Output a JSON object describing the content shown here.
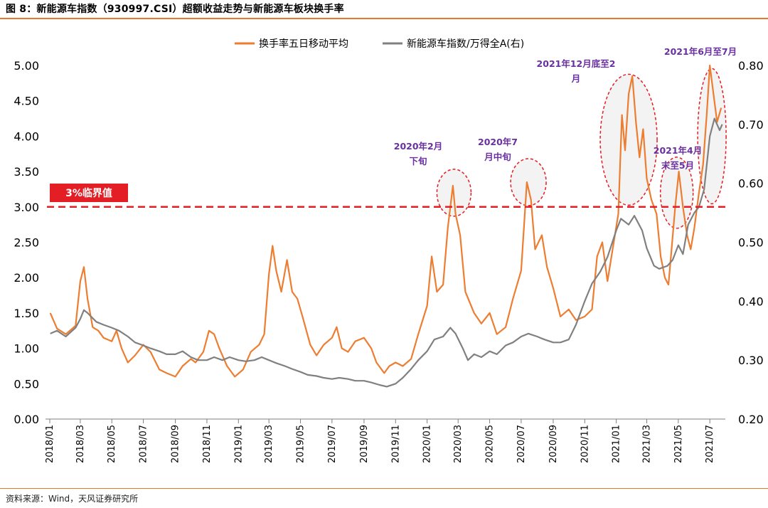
{
  "figure": {
    "title": "图 8：新能源车指数（930997.CSI）超额收益走势与新能源车板块换手率",
    "source": "资料来源：Wind，天风证券研究所"
  },
  "chart_data": {
    "type": "line",
    "title": "图 8：新能源车指数（930997.CSI）超额收益走势与新能源车板块换手率",
    "x_ticks": [
      "2018/01",
      "2018/03",
      "2018/05",
      "2018/07",
      "2018/09",
      "2018/11",
      "2019/01",
      "2019/03",
      "2019/05",
      "2019/07",
      "2019/09",
      "2019/11",
      "2020/01",
      "2020/03",
      "2020/05",
      "2020/07",
      "2020/09",
      "2020/11",
      "2021/01",
      "2021/03",
      "2021/05",
      "2021/07"
    ],
    "y_left": {
      "lim": [
        0.0,
        5.0
      ],
      "ticks": [
        "0.00",
        "0.50",
        "1.00",
        "1.50",
        "2.00",
        "2.50",
        "3.00",
        "3.50",
        "4.00",
        "4.50",
        "5.00"
      ]
    },
    "y_right": {
      "lim": [
        0.2,
        0.8
      ],
      "ticks": [
        "0.20",
        "0.30",
        "0.40",
        "0.50",
        "0.60",
        "0.70",
        "0.80"
      ]
    },
    "legend_position": "top-center",
    "grid": false,
    "series": [
      {
        "name": "换手率五日移动平均",
        "color": "#ed7d31",
        "axis": "left",
        "values": [
          [
            "2018/01/02",
            1.5
          ],
          [
            "2018/01/15",
            1.28
          ],
          [
            "2018/02/01",
            1.2
          ],
          [
            "2018/02/20",
            1.32
          ],
          [
            "2018/03/01",
            1.95
          ],
          [
            "2018/03/08",
            2.15
          ],
          [
            "2018/03/15",
            1.7
          ],
          [
            "2018/03/25",
            1.3
          ],
          [
            "2018/04/05",
            1.25
          ],
          [
            "2018/04/15",
            1.15
          ],
          [
            "2018/05/01",
            1.1
          ],
          [
            "2018/05/10",
            1.25
          ],
          [
            "2018/05/20",
            1.0
          ],
          [
            "2018/06/01",
            0.8
          ],
          [
            "2018/06/15",
            0.9
          ],
          [
            "2018/07/01",
            1.05
          ],
          [
            "2018/07/15",
            0.95
          ],
          [
            "2018/08/01",
            0.7
          ],
          [
            "2018/08/15",
            0.65
          ],
          [
            "2018/09/01",
            0.6
          ],
          [
            "2018/09/15",
            0.75
          ],
          [
            "2018/10/01",
            0.85
          ],
          [
            "2018/10/10",
            0.8
          ],
          [
            "2018/10/25",
            0.95
          ],
          [
            "2018/11/05",
            1.25
          ],
          [
            "2018/11/15",
            1.2
          ],
          [
            "2018/11/25",
            1.0
          ],
          [
            "2018/12/10",
            0.75
          ],
          [
            "2018/12/25",
            0.6
          ],
          [
            "2019/01/10",
            0.7
          ],
          [
            "2019/01/25",
            0.95
          ],
          [
            "2019/02/10",
            1.05
          ],
          [
            "2019/02/20",
            1.2
          ],
          [
            "2019/03/01",
            2.05
          ],
          [
            "2019/03/08",
            2.45
          ],
          [
            "2019/03/15",
            2.1
          ],
          [
            "2019/03/25",
            1.8
          ],
          [
            "2019/04/05",
            2.25
          ],
          [
            "2019/04/15",
            1.8
          ],
          [
            "2019/04/25",
            1.7
          ],
          [
            "2019/05/05",
            1.45
          ],
          [
            "2019/05/20",
            1.05
          ],
          [
            "2019/06/01",
            0.9
          ],
          [
            "2019/06/15",
            1.05
          ],
          [
            "2019/07/01",
            1.15
          ],
          [
            "2019/07/10",
            1.3
          ],
          [
            "2019/07/20",
            1.0
          ],
          [
            "2019/08/01",
            0.95
          ],
          [
            "2019/08/15",
            1.1
          ],
          [
            "2019/09/01",
            1.15
          ],
          [
            "2019/09/15",
            1.0
          ],
          [
            "2019/09/25",
            0.8
          ],
          [
            "2019/10/10",
            0.65
          ],
          [
            "2019/10/20",
            0.75
          ],
          [
            "2019/11/01",
            0.8
          ],
          [
            "2019/11/15",
            0.75
          ],
          [
            "2019/12/01",
            0.85
          ],
          [
            "2019/12/15",
            1.2
          ],
          [
            "2020/01/01",
            1.6
          ],
          [
            "2020/01/10",
            2.3
          ],
          [
            "2020/01/20",
            1.8
          ],
          [
            "2020/02/01",
            1.9
          ],
          [
            "2020/02/10",
            2.7
          ],
          [
            "2020/02/20",
            3.3
          ],
          [
            "2020/02/25",
            2.9
          ],
          [
            "2020/03/05",
            2.6
          ],
          [
            "2020/03/15",
            1.8
          ],
          [
            "2020/04/01",
            1.5
          ],
          [
            "2020/04/15",
            1.35
          ],
          [
            "2020/05/01",
            1.5
          ],
          [
            "2020/05/15",
            1.2
          ],
          [
            "2020/06/01",
            1.3
          ],
          [
            "2020/06/15",
            1.7
          ],
          [
            "2020/07/01",
            2.1
          ],
          [
            "2020/07/08",
            2.9
          ],
          [
            "2020/07/12",
            3.35
          ],
          [
            "2020/07/20",
            3.1
          ],
          [
            "2020/07/28",
            2.4
          ],
          [
            "2020/08/10",
            2.6
          ],
          [
            "2020/08/20",
            2.15
          ],
          [
            "2020/09/01",
            1.85
          ],
          [
            "2020/09/15",
            1.45
          ],
          [
            "2020/10/01",
            1.55
          ],
          [
            "2020/10/15",
            1.4
          ],
          [
            "2020/11/01",
            1.45
          ],
          [
            "2020/11/15",
            1.55
          ],
          [
            "2020/11/25",
            2.3
          ],
          [
            "2020/12/05",
            2.5
          ],
          [
            "2020/12/15",
            1.95
          ],
          [
            "2020/12/25",
            2.4
          ],
          [
            "2021/01/05",
            2.9
          ],
          [
            "2021/01/12",
            4.3
          ],
          [
            "2021/01/18",
            3.8
          ],
          [
            "2021/01/25",
            4.6
          ],
          [
            "2021/02/01",
            4.85
          ],
          [
            "2021/02/08",
            4.2
          ],
          [
            "2021/02/15",
            3.7
          ],
          [
            "2021/02/22",
            4.1
          ],
          [
            "2021/03/01",
            3.4
          ],
          [
            "2021/03/10",
            3.1
          ],
          [
            "2021/03/20",
            2.9
          ],
          [
            "2021/03/28",
            2.3
          ],
          [
            "2021/04/05",
            2.0
          ],
          [
            "2021/04/12",
            1.9
          ],
          [
            "2021/04/18",
            2.4
          ],
          [
            "2021/04/25",
            3.0
          ],
          [
            "2021/05/02",
            3.5
          ],
          [
            "2021/05/10",
            3.0
          ],
          [
            "2021/05/18",
            2.6
          ],
          [
            "2021/05/25",
            2.4
          ],
          [
            "2021/06/01",
            2.7
          ],
          [
            "2021/06/10",
            3.2
          ],
          [
            "2021/06/18",
            3.6
          ],
          [
            "2021/06/25",
            4.3
          ],
          [
            "2021/07/01",
            5.0
          ],
          [
            "2021/07/08",
            4.6
          ],
          [
            "2021/07/15",
            4.2
          ],
          [
            "2021/07/23",
            4.4
          ]
        ]
      },
      {
        "name": "新能源车指数/万得全A(右)",
        "color": "#808080",
        "axis": "right",
        "values": [
          [
            "2018/01/02",
            0.345
          ],
          [
            "2018/01/15",
            0.35
          ],
          [
            "2018/02/01",
            0.34
          ],
          [
            "2018/02/20",
            0.355
          ],
          [
            "2018/03/01",
            0.37
          ],
          [
            "2018/03/08",
            0.385
          ],
          [
            "2018/03/15",
            0.38
          ],
          [
            "2018/04/01",
            0.365
          ],
          [
            "2018/04/15",
            0.36
          ],
          [
            "2018/05/01",
            0.355
          ],
          [
            "2018/05/15",
            0.35
          ],
          [
            "2018/06/01",
            0.34
          ],
          [
            "2018/06/15",
            0.33
          ],
          [
            "2018/07/01",
            0.325
          ],
          [
            "2018/07/15",
            0.32
          ],
          [
            "2018/08/01",
            0.315
          ],
          [
            "2018/08/15",
            0.31
          ],
          [
            "2018/09/01",
            0.31
          ],
          [
            "2018/09/15",
            0.315
          ],
          [
            "2018/10/01",
            0.305
          ],
          [
            "2018/10/15",
            0.3
          ],
          [
            "2018/11/01",
            0.3
          ],
          [
            "2018/11/15",
            0.305
          ],
          [
            "2018/12/01",
            0.3
          ],
          [
            "2018/12/15",
            0.305
          ],
          [
            "2019/01/01",
            0.3
          ],
          [
            "2019/01/15",
            0.298
          ],
          [
            "2019/02/01",
            0.3
          ],
          [
            "2019/02/15",
            0.305
          ],
          [
            "2019/03/01",
            0.3
          ],
          [
            "2019/03/15",
            0.295
          ],
          [
            "2019/04/01",
            0.29
          ],
          [
            "2019/04/15",
            0.285
          ],
          [
            "2019/05/01",
            0.28
          ],
          [
            "2019/05/15",
            0.275
          ],
          [
            "2019/06/01",
            0.273
          ],
          [
            "2019/06/15",
            0.27
          ],
          [
            "2019/07/01",
            0.268
          ],
          [
            "2019/07/15",
            0.27
          ],
          [
            "2019/08/01",
            0.268
          ],
          [
            "2019/08/15",
            0.265
          ],
          [
            "2019/09/01",
            0.265
          ],
          [
            "2019/09/15",
            0.262
          ],
          [
            "2019/10/01",
            0.258
          ],
          [
            "2019/10/15",
            0.255
          ],
          [
            "2019/11/01",
            0.26
          ],
          [
            "2019/11/15",
            0.27
          ],
          [
            "2019/12/01",
            0.285
          ],
          [
            "2019/12/15",
            0.3
          ],
          [
            "2020/01/01",
            0.315
          ],
          [
            "2020/01/15",
            0.335
          ],
          [
            "2020/02/01",
            0.34
          ],
          [
            "2020/02/15",
            0.355
          ],
          [
            "2020/02/25",
            0.345
          ],
          [
            "2020/03/10",
            0.32
          ],
          [
            "2020/03/20",
            0.3
          ],
          [
            "2020/04/01",
            0.31
          ],
          [
            "2020/04/15",
            0.305
          ],
          [
            "2020/05/01",
            0.315
          ],
          [
            "2020/05/15",
            0.31
          ],
          [
            "2020/06/01",
            0.325
          ],
          [
            "2020/06/15",
            0.33
          ],
          [
            "2020/07/01",
            0.34
          ],
          [
            "2020/07/15",
            0.345
          ],
          [
            "2020/08/01",
            0.34
          ],
          [
            "2020/08/15",
            0.335
          ],
          [
            "2020/09/01",
            0.33
          ],
          [
            "2020/09/15",
            0.33
          ],
          [
            "2020/10/01",
            0.335
          ],
          [
            "2020/10/15",
            0.36
          ],
          [
            "2020/11/01",
            0.4
          ],
          [
            "2020/11/15",
            0.43
          ],
          [
            "2020/12/01",
            0.45
          ],
          [
            "2020/12/15",
            0.475
          ],
          [
            "2021/01/01",
            0.52
          ],
          [
            "2021/01/10",
            0.54
          ],
          [
            "2021/01/25",
            0.53
          ],
          [
            "2021/02/05",
            0.545
          ],
          [
            "2021/02/20",
            0.52
          ],
          [
            "2021/03/01",
            0.49
          ],
          [
            "2021/03/15",
            0.46
          ],
          [
            "2021/03/25",
            0.455
          ],
          [
            "2021/04/10",
            0.46
          ],
          [
            "2021/04/20",
            0.47
          ],
          [
            "2021/05/01",
            0.495
          ],
          [
            "2021/05/10",
            0.48
          ],
          [
            "2021/05/20",
            0.53
          ],
          [
            "2021/06/01",
            0.55
          ],
          [
            "2021/06/10",
            0.56
          ],
          [
            "2021/06/20",
            0.59
          ],
          [
            "2021/07/01",
            0.68
          ],
          [
            "2021/07/10",
            0.71
          ],
          [
            "2021/07/20",
            0.69
          ],
          [
            "2021/07/25",
            0.7
          ]
        ]
      }
    ],
    "threshold": {
      "value": 3.0,
      "label": "3%临界值",
      "color": "#e31e24"
    },
    "annotations": [
      {
        "lines": [
          "2020年2月",
          "下旬"
        ],
        "at": "2020/02/20",
        "y": 3.0
      },
      {
        "lines": [
          "2020年7",
          "月中旬"
        ],
        "at": "2020/07/12",
        "y": 3.0
      },
      {
        "lines": [
          "2021年12月底至2",
          "月"
        ],
        "at": "2021/01/25",
        "y": 3.0
      },
      {
        "lines": [
          "2021年4月",
          "末至5月"
        ],
        "at": "2021/04/25",
        "y": 3.0
      },
      {
        "lines": [
          "2021年6月至7月"
        ],
        "at": "2021/07/01",
        "y": 3.0
      }
    ]
  }
}
